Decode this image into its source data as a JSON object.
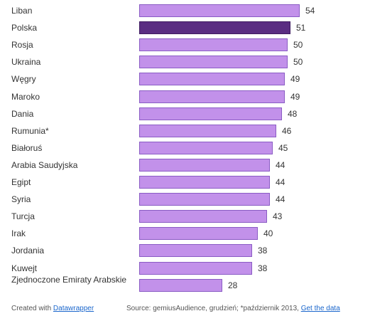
{
  "chart_data": {
    "type": "bar",
    "orientation": "horizontal",
    "categories": [
      "Liban",
      "Polska",
      "Rosja",
      "Ukraina",
      "Węgry",
      "Maroko",
      "Dania",
      "Rumunia*",
      "Białoruś",
      "Arabia Saudyjska",
      "Egipt",
      "Syria",
      "Turcja",
      "Irak",
      "Jordania",
      "Kuwejt",
      "Zjednoczone Emiraty Arabskie"
    ],
    "values": [
      54,
      51,
      50,
      50,
      49,
      49,
      48,
      46,
      45,
      44,
      44,
      44,
      43,
      40,
      38,
      38,
      28
    ],
    "highlight": "Polska",
    "colors": {
      "bar": "#c291ea",
      "bar_border": "#8a5cc4",
      "highlight": "#5a2d82",
      "highlight_border": "#3e1b60"
    },
    "xlim": [
      0,
      54
    ],
    "grid": false,
    "title": "",
    "xlabel": "",
    "ylabel": ""
  },
  "footer": {
    "created_with": "Created with",
    "datawrapper_link": "Datawrapper",
    "source": "Source: gemiusAudience, grudzień; *październik 2013,",
    "get_data_link": "Get the data"
  }
}
